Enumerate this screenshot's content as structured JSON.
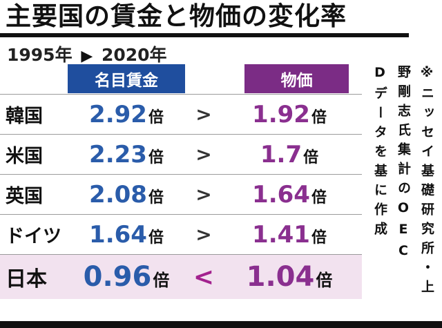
{
  "title": "主要国の賃金と物価の変化率",
  "subtitle": {
    "from": "1995年",
    "arrow": "▶",
    "to": "2020年"
  },
  "columns": {
    "wage": "名目賃金",
    "price": "物価"
  },
  "unit": "倍",
  "rows": [
    {
      "country": "韓国",
      "wage": "2.92",
      "cmp": ">",
      "price": "1.92"
    },
    {
      "country": "米国",
      "wage": "2.23",
      "cmp": ">",
      "price": "1.7"
    },
    {
      "country": "英国",
      "wage": "2.08",
      "cmp": ">",
      "price": "1.64"
    },
    {
      "country": "ドイツ",
      "wage": "1.64",
      "cmp": ">",
      "price": "1.41"
    },
    {
      "country": "日本",
      "wage": "0.96",
      "cmp": "<",
      "price": "1.04"
    }
  ],
  "source_note": [
    "※ニッセイ基礎研究所・上",
    "野剛志氏集計のOEC",
    "Dデータを基に作成"
  ],
  "colors": {
    "wage_header_bg": "#1f4e9e",
    "price_header_bg": "#7b2c85",
    "wage_value": "#2a5caa",
    "price_value": "#8a2f8f",
    "japan_row_bg": "#f2e2ef",
    "japan_cmp": "#a3218e"
  },
  "chart_data": {
    "type": "table",
    "title": "主要国の賃金と物価の変化率 1995年▶2020年",
    "categories": [
      "韓国",
      "米国",
      "英国",
      "ドイツ",
      "日本"
    ],
    "series": [
      {
        "name": "名目賃金",
        "values": [
          2.92,
          2.23,
          2.08,
          1.64,
          0.96
        ]
      },
      {
        "name": "物価",
        "values": [
          1.92,
          1.7,
          1.64,
          1.41,
          1.04
        ]
      }
    ],
    "comparison": [
      ">",
      ">",
      ">",
      ">",
      "<"
    ],
    "unit": "倍",
    "note": "※ニッセイ基礎研究所・上野剛志氏集計のOECDデータを基に作成"
  }
}
